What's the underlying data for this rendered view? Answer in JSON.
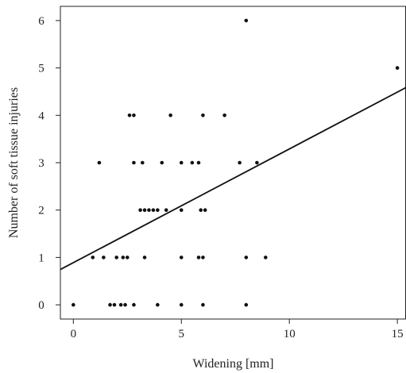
{
  "chart_data": {
    "type": "scatter",
    "xlabel": "Widening [mm]",
    "ylabel": "Number of soft tissue injuries",
    "xlim": [
      -0.6,
      15.4
    ],
    "ylim": [
      -0.3,
      6.3
    ],
    "xticks": [
      0,
      5,
      10,
      15
    ],
    "yticks": [
      0,
      1,
      2,
      3,
      4,
      5,
      6
    ],
    "grid": false,
    "legend": "none",
    "point_color": "#111111",
    "line_color": "#111111",
    "points": [
      [
        0,
        0
      ],
      [
        1.7,
        0
      ],
      [
        1.9,
        0
      ],
      [
        2.2,
        0
      ],
      [
        2.4,
        0
      ],
      [
        2.8,
        0
      ],
      [
        3.9,
        0
      ],
      [
        5.0,
        0
      ],
      [
        6.0,
        0
      ],
      [
        8.0,
        0
      ],
      [
        0.9,
        1
      ],
      [
        1.4,
        1
      ],
      [
        2.0,
        1
      ],
      [
        2.3,
        1
      ],
      [
        2.5,
        1
      ],
      [
        3.3,
        1
      ],
      [
        5.0,
        1
      ],
      [
        5.8,
        1
      ],
      [
        6.0,
        1
      ],
      [
        8.0,
        1
      ],
      [
        8.9,
        1
      ],
      [
        3.1,
        2
      ],
      [
        3.3,
        2
      ],
      [
        3.5,
        2
      ],
      [
        3.7,
        2
      ],
      [
        3.9,
        2
      ],
      [
        4.3,
        2
      ],
      [
        5.0,
        2
      ],
      [
        5.9,
        2
      ],
      [
        6.1,
        2
      ],
      [
        1.2,
        3
      ],
      [
        2.8,
        3
      ],
      [
        3.2,
        3
      ],
      [
        4.1,
        3
      ],
      [
        5.0,
        3
      ],
      [
        5.5,
        3
      ],
      [
        5.8,
        3
      ],
      [
        7.7,
        3
      ],
      [
        8.5,
        3
      ],
      [
        2.6,
        4
      ],
      [
        2.8,
        4
      ],
      [
        4.5,
        4
      ],
      [
        6.0,
        4
      ],
      [
        7.0,
        4
      ],
      [
        15.0,
        5
      ],
      [
        8.0,
        6
      ]
    ],
    "fit_line": {
      "intercept": 0.89,
      "slope": 0.24
    }
  }
}
